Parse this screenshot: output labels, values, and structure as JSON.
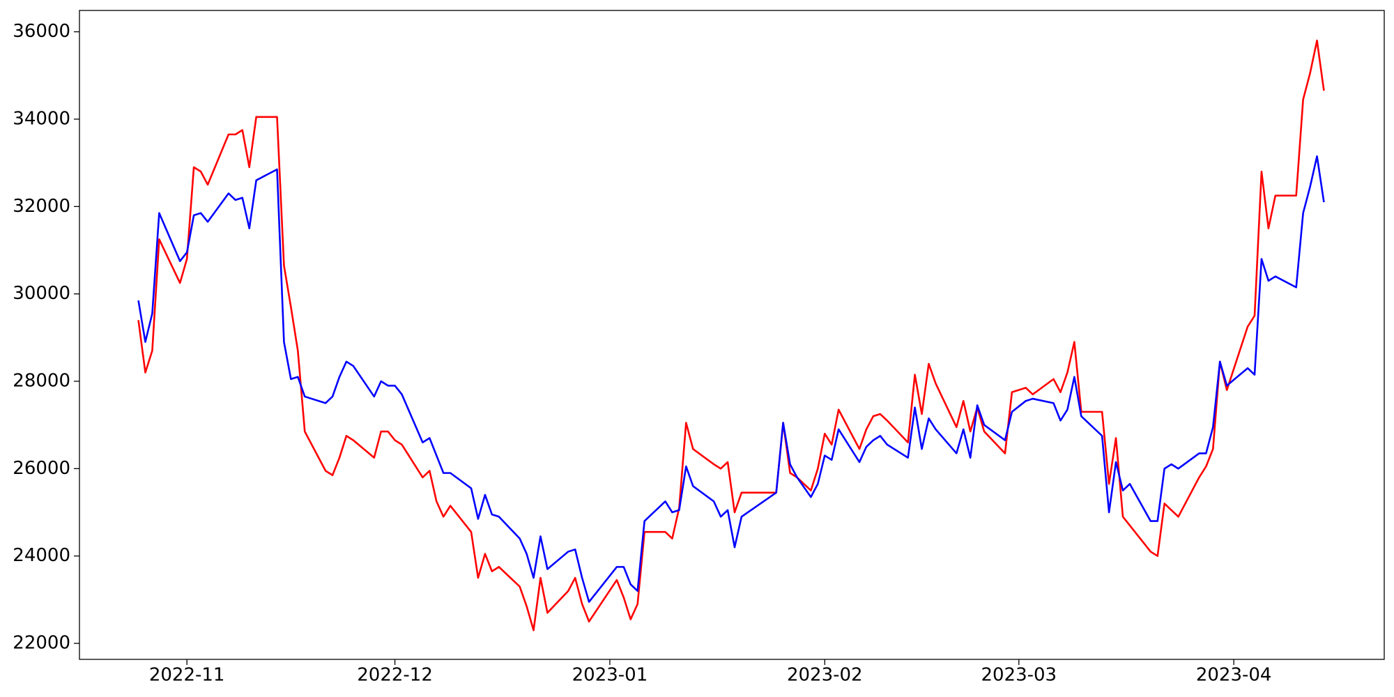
{
  "chart_data": {
    "type": "line",
    "x": [
      19290,
      19291,
      19292,
      19293,
      19296,
      19297,
      19298,
      19299,
      19300,
      19303,
      19304,
      19305,
      19306,
      19307,
      19310,
      19311,
      19312,
      19313,
      19314,
      19317,
      19318,
      19319,
      19320,
      19321,
      19324,
      19325,
      19326,
      19327,
      19328,
      19331,
      19332,
      19333,
      19334,
      19335,
      19338,
      19339,
      19340,
      19341,
      19342,
      19345,
      19346,
      19347,
      19348,
      19349,
      19352,
      19353,
      19354,
      19355,
      19359,
      19360,
      19361,
      19362,
      19363,
      19366,
      19367,
      19368,
      19369,
      19370,
      19373,
      19374,
      19375,
      19376,
      19377,
      19382,
      19383,
      19384,
      19385,
      19387,
      19388,
      19389,
      19390,
      19391,
      19394,
      19395,
      19396,
      19397,
      19398,
      19401,
      19402,
      19403,
      19404,
      19405,
      19408,
      19409,
      19410,
      19411,
      19412,
      19415,
      19416,
      19418,
      19419,
      19422,
      19423,
      19424,
      19425,
      19426,
      19429,
      19430,
      19431,
      19432,
      19433,
      19436,
      19437,
      19438,
      19439,
      19440,
      19443,
      19444,
      19445,
      19446,
      19447,
      19450,
      19451,
      19452,
      19453,
      19454,
      19457,
      19458,
      19459,
      19460,
      19461
    ],
    "series": [
      {
        "color": "#ff0000",
        "values": [
          29400,
          28200,
          28700,
          31250,
          30250,
          30800,
          32900,
          32800,
          32500,
          33650,
          33650,
          33750,
          32900,
          34050,
          34050,
          30650,
          29700,
          28700,
          26850,
          25950,
          25850,
          26250,
          26750,
          26650,
          26250,
          26850,
          26850,
          26650,
          26550,
          25800,
          25950,
          25250,
          24900,
          25150,
          24550,
          23500,
          24050,
          23650,
          23750,
          23300,
          22850,
          22300,
          23500,
          22700,
          23200,
          23500,
          22900,
          22500,
          23450,
          23050,
          22550,
          22900,
          24550,
          24550,
          24400,
          25100,
          27050,
          26450,
          26100,
          26000,
          26150,
          25000,
          25450,
          25450,
          27050,
          25900,
          25800,
          25500,
          26000,
          26800,
          26550,
          27350,
          26450,
          26900,
          27200,
          27250,
          27100,
          26600,
          28150,
          27250,
          28400,
          27950,
          26950,
          27550,
          26850,
          27400,
          26850,
          26350,
          27750,
          27850,
          27700,
          28050,
          27750,
          28200,
          28900,
          27300,
          27300,
          25650,
          26700,
          24900,
          24700,
          24100,
          24000,
          25200,
          25050,
          24900,
          25800,
          26050,
          26450,
          28450,
          27800,
          29250,
          29500,
          32800,
          31500,
          32250,
          32250,
          34450,
          35050,
          35800,
          34650
        ]
      },
      {
        "color": "#0000ff",
        "values": [
          29850,
          28900,
          29550,
          31850,
          30750,
          30950,
          31800,
          31850,
          31650,
          32300,
          32150,
          32200,
          31500,
          32600,
          32850,
          28900,
          28050,
          28100,
          27650,
          27500,
          27650,
          28100,
          28450,
          28350,
          27650,
          28000,
          27900,
          27900,
          27700,
          26600,
          26700,
          26300,
          25900,
          25900,
          25550,
          24850,
          25400,
          24950,
          24900,
          24400,
          24050,
          23500,
          24450,
          23700,
          24100,
          24150,
          23500,
          22950,
          23750,
          23750,
          23350,
          23200,
          24800,
          25250,
          25000,
          25050,
          26050,
          25600,
          25250,
          24900,
          25050,
          24200,
          24900,
          25450,
          27050,
          26100,
          25800,
          25350,
          25650,
          26300,
          26200,
          26900,
          26150,
          26500,
          26650,
          26750,
          26550,
          26250,
          27400,
          26450,
          27150,
          26900,
          26350,
          26900,
          26250,
          27450,
          27000,
          26650,
          27300,
          27550,
          27600,
          27500,
          27100,
          27350,
          28100,
          27200,
          26750,
          25000,
          26150,
          25500,
          25650,
          24800,
          24800,
          26000,
          26100,
          26000,
          26350,
          26350,
          26950,
          28450,
          27900,
          28300,
          28150,
          30800,
          30300,
          30400,
          30150,
          31850,
          32450,
          33150,
          32100
        ]
      }
    ],
    "xlim": [
      19281.5,
      19469.7
    ],
    "xticks": [
      {
        "value": 19297,
        "label": "2022-11"
      },
      {
        "value": 19327,
        "label": "2022-12"
      },
      {
        "value": 19358,
        "label": "2023-01"
      },
      {
        "value": 19389,
        "label": "2023-02"
      },
      {
        "value": 19417,
        "label": "2023-03"
      },
      {
        "value": 19448,
        "label": "2023-04"
      }
    ],
    "ylim": [
      21634,
      36488
    ],
    "yticks": [
      22000,
      24000,
      26000,
      28000,
      30000,
      32000,
      34000,
      36000
    ]
  }
}
